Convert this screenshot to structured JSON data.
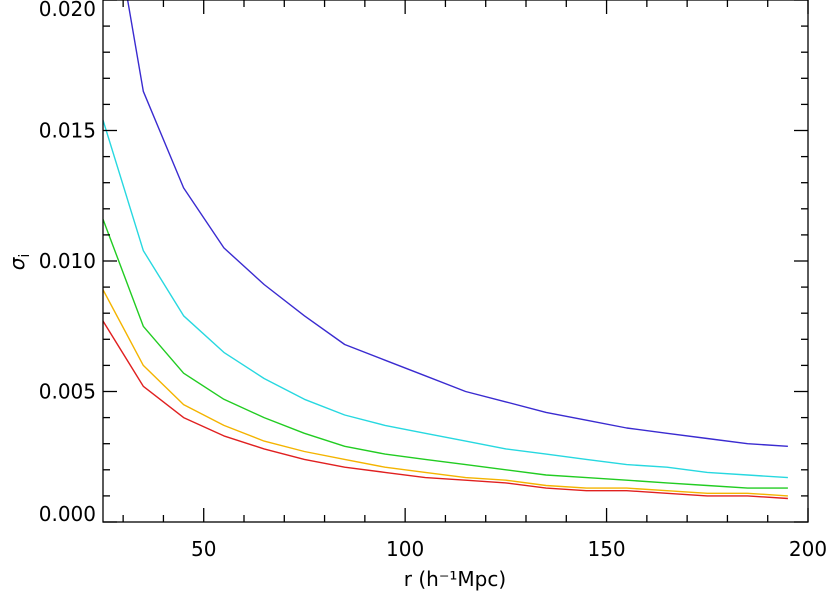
{
  "chart_data": {
    "type": "line",
    "title": "",
    "xlabel": "r (h⁻¹Mpc)",
    "ylabel": "σ",
    "ylabel_subscript": "i",
    "xlim": [
      25,
      200
    ],
    "ylim": [
      0.0,
      0.02
    ],
    "x_major_ticks": [
      50,
      100,
      150,
      200
    ],
    "x_tick_labels": [
      "50",
      "100",
      "150",
      "200"
    ],
    "x_minor_step": 10,
    "y_major_ticks": [
      0.0,
      0.005,
      0.01,
      0.015,
      0.02
    ],
    "y_tick_labels": [
      "0.000",
      "0.005",
      "0.010",
      "0.015",
      "0.020"
    ],
    "y_minor_step": 0.001,
    "grid": false,
    "legend": "none",
    "x": [
      25,
      35,
      45,
      55,
      65,
      75,
      85,
      95,
      105,
      115,
      125,
      135,
      145,
      155,
      165,
      175,
      185,
      195
    ],
    "series": [
      {
        "color": "#3a2bd0",
        "values": [
          0.0255,
          0.0165,
          0.0128,
          0.0105,
          0.0091,
          0.0079,
          0.0068,
          0.0062,
          0.0056,
          0.005,
          0.0046,
          0.0042,
          0.0039,
          0.0036,
          0.0034,
          0.0032,
          0.003,
          0.0029
        ]
      },
      {
        "color": "#27d8e0",
        "values": [
          0.0154,
          0.0104,
          0.0079,
          0.0065,
          0.0055,
          0.0047,
          0.0041,
          0.0037,
          0.0034,
          0.0031,
          0.0028,
          0.0026,
          0.0024,
          0.0022,
          0.0021,
          0.0019,
          0.0018,
          0.0017
        ]
      },
      {
        "color": "#22cc22",
        "values": [
          0.0116,
          0.0075,
          0.0057,
          0.0047,
          0.004,
          0.0034,
          0.0029,
          0.0026,
          0.0024,
          0.0022,
          0.002,
          0.0018,
          0.0017,
          0.0016,
          0.0015,
          0.0014,
          0.0013,
          0.0013
        ]
      },
      {
        "color": "#f4b400",
        "values": [
          0.0089,
          0.006,
          0.0045,
          0.0037,
          0.0031,
          0.0027,
          0.0024,
          0.0021,
          0.0019,
          0.0017,
          0.0016,
          0.0014,
          0.0013,
          0.0013,
          0.0012,
          0.0011,
          0.0011,
          0.001
        ]
      },
      {
        "color": "#e02020",
        "values": [
          0.0077,
          0.0052,
          0.004,
          0.0033,
          0.0028,
          0.0024,
          0.0021,
          0.0019,
          0.0017,
          0.0016,
          0.0015,
          0.0013,
          0.0012,
          0.0012,
          0.0011,
          0.001,
          0.001,
          0.0009
        ]
      }
    ]
  }
}
